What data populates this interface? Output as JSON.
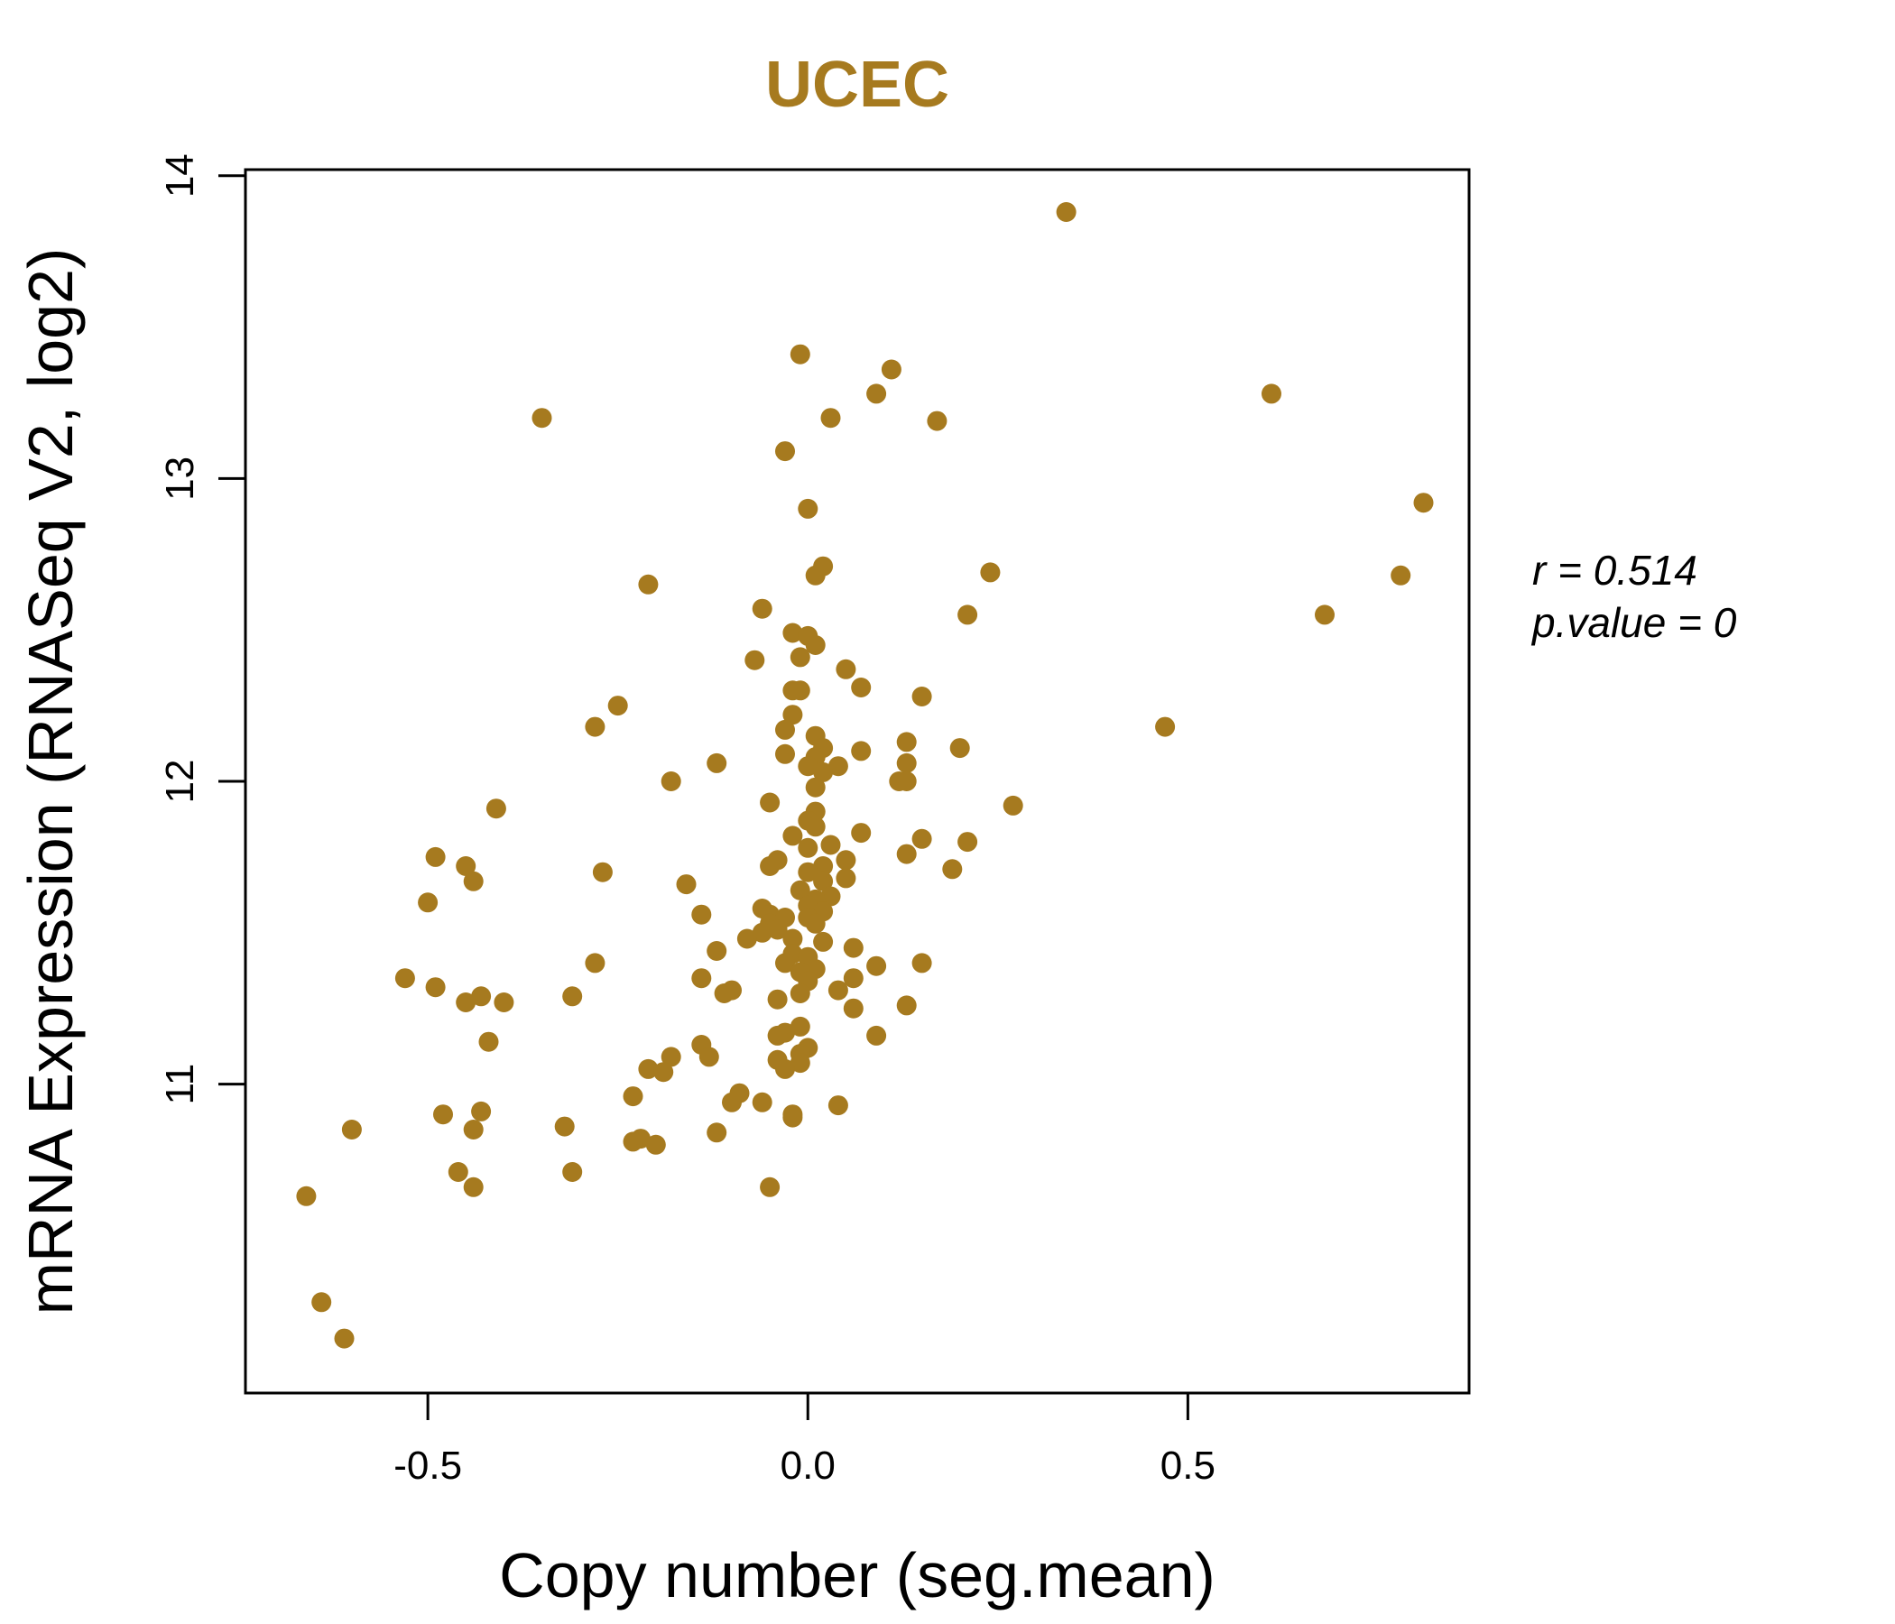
{
  "colors": {
    "points": "#A67A1F",
    "title": "#A67A1F",
    "axis": "#000000"
  },
  "chart_data": {
    "type": "scatter",
    "title": "UCEC",
    "xlabel": "Copy number (seg.mean)",
    "ylabel": "mRNA Expression (RNASeq V2, log2)",
    "xlim": [
      -0.74,
      0.87
    ],
    "ylim": [
      9.98,
      14.02
    ],
    "xticks": [
      -0.5,
      0.0,
      0.5
    ],
    "xtick_labels": [
      "-0.5",
      "0.0",
      "0.5"
    ],
    "yticks": [
      11,
      12,
      13,
      14
    ],
    "ytick_labels": [
      "11",
      "12",
      "13",
      "14"
    ],
    "grid": false,
    "annotations": {
      "r_label": "r = 0.514",
      "p_label": "p.value = 0"
    },
    "points": [
      [
        0.34,
        13.88
      ],
      [
        -0.01,
        13.41
      ],
      [
        0.11,
        13.36
      ],
      [
        0.09,
        13.28
      ],
      [
        0.61,
        13.28
      ],
      [
        -0.35,
        13.2
      ],
      [
        0.03,
        13.2
      ],
      [
        0.17,
        13.19
      ],
      [
        -0.03,
        13.09
      ],
      [
        0.81,
        12.92
      ],
      [
        0.0,
        12.9
      ],
      [
        0.02,
        12.71
      ],
      [
        0.01,
        12.68
      ],
      [
        0.24,
        12.69
      ],
      [
        0.78,
        12.68
      ],
      [
        -0.21,
        12.65
      ],
      [
        -0.06,
        12.57
      ],
      [
        0.68,
        12.55
      ],
      [
        0.21,
        12.55
      ],
      [
        -0.02,
        12.49
      ],
      [
        0.0,
        12.48
      ],
      [
        0.01,
        12.45
      ],
      [
        -0.01,
        12.41
      ],
      [
        -0.07,
        12.4
      ],
      [
        0.05,
        12.37
      ],
      [
        -0.01,
        12.3
      ],
      [
        0.07,
        12.31
      ],
      [
        -0.02,
        12.3
      ],
      [
        0.15,
        12.28
      ],
      [
        -0.25,
        12.25
      ],
      [
        -0.02,
        12.22
      ],
      [
        -0.28,
        12.18
      ],
      [
        -0.03,
        12.17
      ],
      [
        0.47,
        12.18
      ],
      [
        0.01,
        12.15
      ],
      [
        0.13,
        12.13
      ],
      [
        0.02,
        12.11
      ],
      [
        0.07,
        12.1
      ],
      [
        0.2,
        12.11
      ],
      [
        -0.03,
        12.09
      ],
      [
        0.01,
        12.08
      ],
      [
        -0.12,
        12.06
      ],
      [
        0.0,
        12.05
      ],
      [
        0.04,
        12.05
      ],
      [
        0.13,
        12.06
      ],
      [
        0.02,
        12.03
      ],
      [
        0.12,
        12.0
      ],
      [
        0.13,
        12.0
      ],
      [
        -0.18,
        12.0
      ],
      [
        0.01,
        11.98
      ],
      [
        -0.05,
        11.93
      ],
      [
        0.27,
        11.92
      ],
      [
        -0.41,
        11.91
      ],
      [
        0.01,
        11.9
      ],
      [
        0.0,
        11.87
      ],
      [
        0.01,
        11.85
      ],
      [
        -0.02,
        11.82
      ],
      [
        0.07,
        11.83
      ],
      [
        0.15,
        11.81
      ],
      [
        0.21,
        11.8
      ],
      [
        0.03,
        11.79
      ],
      [
        0.0,
        11.78
      ],
      [
        0.13,
        11.76
      ],
      [
        -0.49,
        11.75
      ],
      [
        -0.04,
        11.74
      ],
      [
        0.05,
        11.74
      ],
      [
        -0.45,
        11.72
      ],
      [
        -0.05,
        11.72
      ],
      [
        0.02,
        11.72
      ],
      [
        0.19,
        11.71
      ],
      [
        -0.27,
        11.7
      ],
      [
        0.0,
        11.7
      ],
      [
        0.05,
        11.68
      ],
      [
        -0.44,
        11.67
      ],
      [
        0.02,
        11.67
      ],
      [
        -0.16,
        11.66
      ],
      [
        -0.01,
        11.64
      ],
      [
        0.03,
        11.62
      ],
      [
        0.01,
        11.61
      ],
      [
        -0.5,
        11.6
      ],
      [
        0.0,
        11.59
      ],
      [
        -0.06,
        11.58
      ],
      [
        0.02,
        11.57
      ],
      [
        -0.05,
        11.56
      ],
      [
        -0.14,
        11.56
      ],
      [
        -0.03,
        11.55
      ],
      [
        0.0,
        11.55
      ],
      [
        -0.05,
        11.53
      ],
      [
        0.01,
        11.53
      ],
      [
        -0.04,
        11.51
      ],
      [
        -0.06,
        11.5
      ],
      [
        -0.08,
        11.48
      ],
      [
        -0.02,
        11.48
      ],
      [
        0.02,
        11.47
      ],
      [
        0.06,
        11.45
      ],
      [
        -0.12,
        11.44
      ],
      [
        -0.02,
        11.43
      ],
      [
        0.0,
        11.42
      ],
      [
        -0.03,
        11.4
      ],
      [
        0.15,
        11.4
      ],
      [
        -0.28,
        11.4
      ],
      [
        0.09,
        11.39
      ],
      [
        0.01,
        11.38
      ],
      [
        -0.01,
        11.37
      ],
      [
        -0.53,
        11.35
      ],
      [
        -0.14,
        11.35
      ],
      [
        0.06,
        11.35
      ],
      [
        0.0,
        11.34
      ],
      [
        -0.49,
        11.32
      ],
      [
        -0.1,
        11.31
      ],
      [
        0.04,
        11.31
      ],
      [
        -0.11,
        11.3
      ],
      [
        -0.01,
        11.3
      ],
      [
        -0.31,
        11.29
      ],
      [
        -0.43,
        11.29
      ],
      [
        -0.04,
        11.28
      ],
      [
        -0.45,
        11.27
      ],
      [
        -0.4,
        11.27
      ],
      [
        0.13,
        11.26
      ],
      [
        0.06,
        11.25
      ],
      [
        -0.01,
        11.19
      ],
      [
        -0.03,
        11.17
      ],
      [
        -0.04,
        11.16
      ],
      [
        0.09,
        11.16
      ],
      [
        -0.42,
        11.14
      ],
      [
        -0.14,
        11.13
      ],
      [
        0.0,
        11.12
      ],
      [
        -0.01,
        11.1
      ],
      [
        -0.13,
        11.09
      ],
      [
        -0.18,
        11.09
      ],
      [
        -0.04,
        11.08
      ],
      [
        -0.01,
        11.07
      ],
      [
        -0.03,
        11.05
      ],
      [
        -0.21,
        11.05
      ],
      [
        -0.19,
        11.04
      ],
      [
        -0.09,
        10.97
      ],
      [
        -0.23,
        10.96
      ],
      [
        -0.1,
        10.94
      ],
      [
        -0.06,
        10.94
      ],
      [
        0.04,
        10.93
      ],
      [
        -0.48,
        10.9
      ],
      [
        -0.43,
        10.91
      ],
      [
        -0.02,
        10.9
      ],
      [
        -0.02,
        10.89
      ],
      [
        -0.32,
        10.86
      ],
      [
        -0.6,
        10.85
      ],
      [
        -0.44,
        10.85
      ],
      [
        -0.12,
        10.84
      ],
      [
        -0.22,
        10.82
      ],
      [
        -0.23,
        10.81
      ],
      [
        -0.2,
        10.8
      ],
      [
        -0.31,
        10.71
      ],
      [
        -0.46,
        10.71
      ],
      [
        -0.44,
        10.66
      ],
      [
        -0.05,
        10.66
      ],
      [
        -0.66,
        10.63
      ],
      [
        -0.64,
        10.28
      ],
      [
        -0.61,
        10.16
      ]
    ]
  }
}
